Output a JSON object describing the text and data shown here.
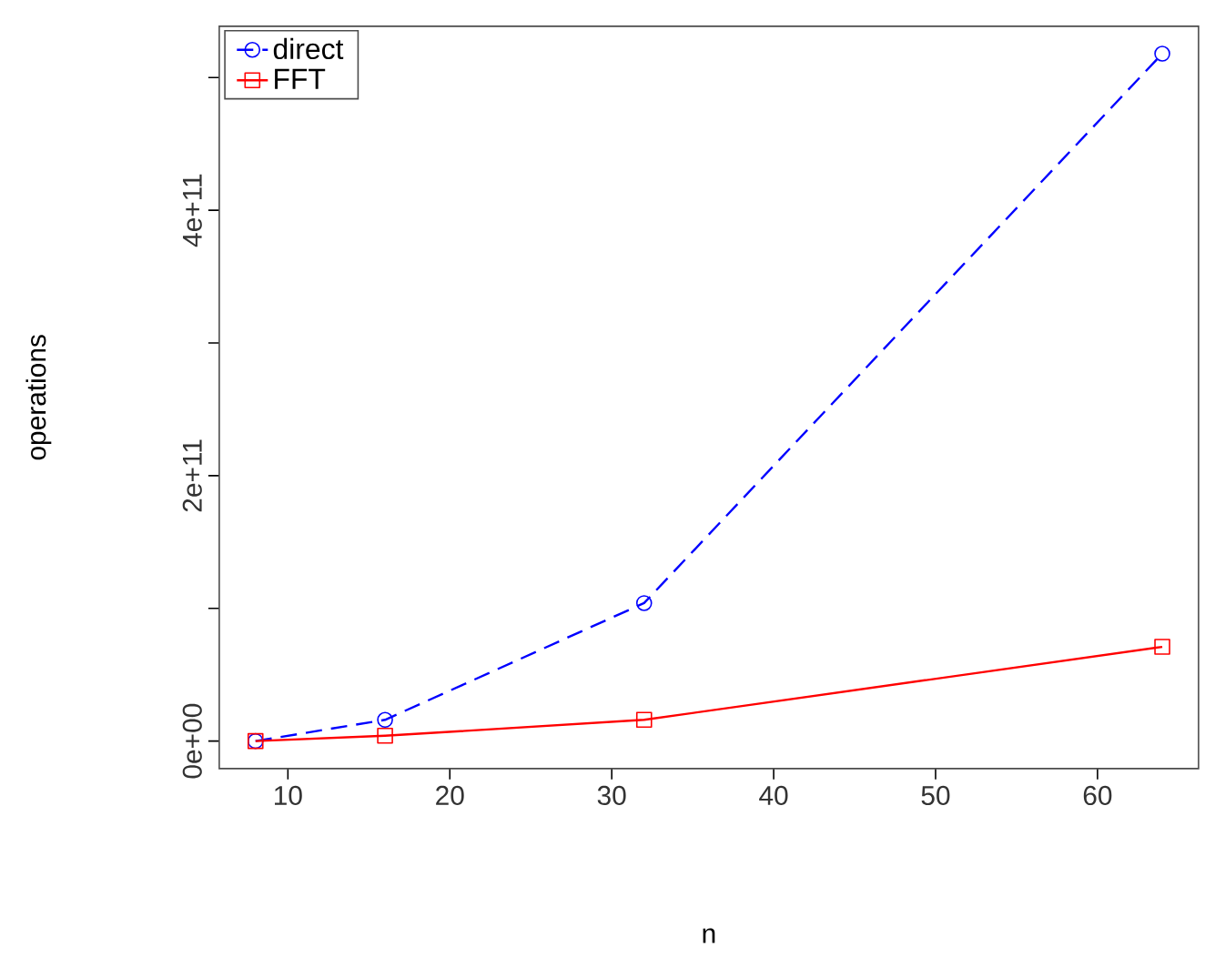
{
  "chart_data": {
    "type": "line",
    "xlabel": "n",
    "ylabel": "operations",
    "x": [
      8,
      16,
      32,
      64
    ],
    "series": [
      {
        "name": "direct",
        "color": "#0000ff",
        "values": [
          0,
          16000000000,
          104000000000,
          518000000000
        ],
        "marker": "circle",
        "line_style": "dashed"
      },
      {
        "name": "FFT",
        "color": "#ff0000",
        "values": [
          0,
          4000000000,
          16000000000,
          71000000000
        ],
        "marker": "square",
        "line_style": "solid"
      }
    ],
    "xlim": [
      5.76,
      66.24
    ],
    "ylim": [
      -20700000000,
      538700000000
    ],
    "xticks": [
      10,
      20,
      30,
      40,
      50,
      60
    ],
    "yticks": [
      {
        "value": 0,
        "label": "0e+00"
      },
      {
        "value": 100000000000,
        "label": null
      },
      {
        "value": 200000000000,
        "label": "2e+11"
      },
      {
        "value": 300000000000,
        "label": null
      },
      {
        "value": 400000000000,
        "label": "4e+11"
      },
      {
        "value": 500000000000,
        "label": null
      }
    ],
    "grid": false,
    "legend": "top left"
  }
}
